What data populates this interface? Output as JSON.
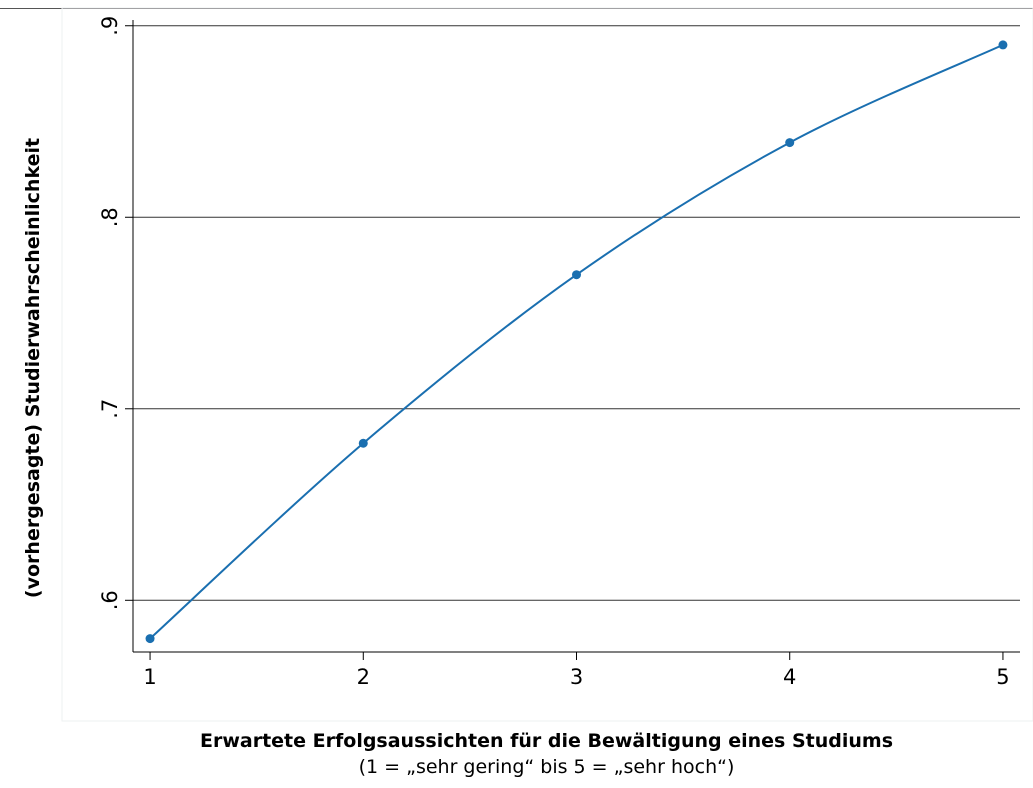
{
  "chart_data": {
    "type": "line",
    "title": "",
    "xlabel": "Erwartete Erfolgsaussichten für die Bewältigung eines Studiums",
    "xlabel_sub": "(1 = „sehr gering“ bis 5 = „sehr hoch“)",
    "ylabel": "(vorhergesagte) Studierwahrscheinlichkeit",
    "x": [
      1,
      2,
      3,
      4,
      5
    ],
    "y": [
      0.58,
      0.682,
      0.77,
      0.839,
      0.89
    ],
    "xlim": [
      0.92,
      5.08
    ],
    "ylim": [
      0.573,
      0.903
    ],
    "xticks": [
      1,
      2,
      3,
      4,
      5
    ],
    "xtick_labels": [
      "1",
      "2",
      "3",
      "4",
      "5"
    ],
    "yticks": [
      0.6,
      0.7,
      0.8,
      0.9
    ],
    "ytick_labels": [
      ".6",
      ".7",
      ".8",
      ".9"
    ],
    "grid": "horizontal",
    "line_color": "#1a6fb0",
    "marker_color": "#1a6fb0"
  }
}
